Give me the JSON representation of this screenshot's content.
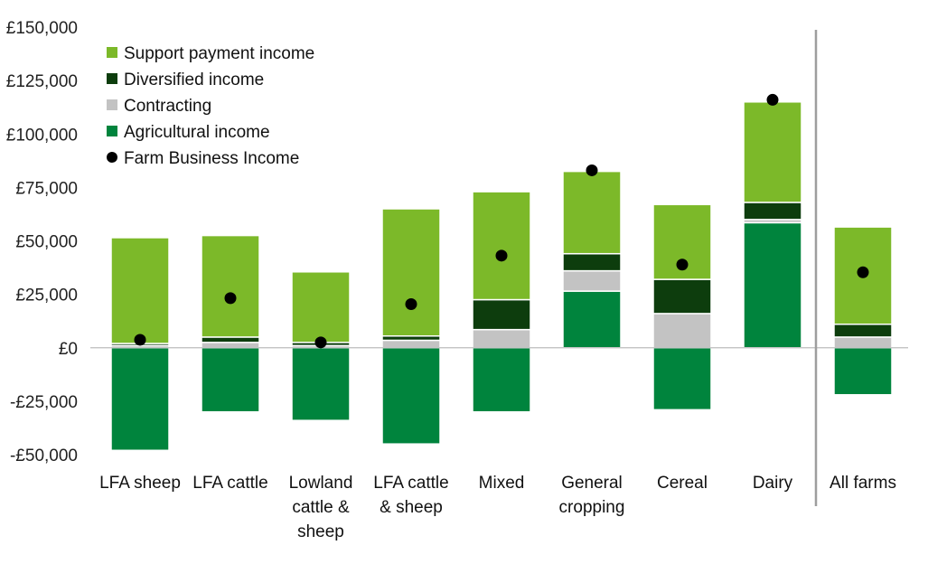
{
  "chart_data": {
    "type": "bar",
    "stacked": true,
    "title": "",
    "xlabel": "",
    "ylabel": "",
    "ylim": [
      -50000,
      150000
    ],
    "y_ticks": [
      150000,
      125000,
      100000,
      75000,
      50000,
      25000,
      0,
      -25000,
      -50000
    ],
    "y_tick_labels": [
      "£150,000",
      "£125,000",
      "£100,000",
      "£75,000",
      "£50,000",
      "£25,000",
      "£0",
      "-£25,000",
      "-£50,000"
    ],
    "categories": [
      "LFA sheep",
      "LFA cattle",
      "Lowland cattle & sheep",
      "LFA cattle & sheep",
      "Mixed",
      "General cropping",
      "Cereal",
      "Dairy",
      "All farms"
    ],
    "category_label_lines": [
      [
        "LFA sheep"
      ],
      [
        "LFA cattle"
      ],
      [
        "Lowland",
        "cattle &",
        "sheep"
      ],
      [
        "LFA cattle",
        "& sheep"
      ],
      [
        "Mixed"
      ],
      [
        "General",
        "cropping"
      ],
      [
        "Cereal"
      ],
      [
        "Dairy"
      ],
      [
        "All farms"
      ]
    ],
    "separator_before_index": 8,
    "grid": false,
    "legend_position": "top-left",
    "series": [
      {
        "name": "Agricultural income",
        "color": "#00843d",
        "values": [
          -48000,
          -30000,
          -34000,
          -45000,
          -30000,
          26500,
          -29000,
          58500,
          -22000
        ]
      },
      {
        "name": "Contracting",
        "color": "#c3c3c3",
        "values": [
          1000,
          2500,
          1000,
          3500,
          8500,
          9500,
          16000,
          1500,
          5000
        ]
      },
      {
        "name": "Diversified income",
        "color": "#0d3d0d",
        "values": [
          1000,
          2500,
          1500,
          2000,
          14000,
          8000,
          16000,
          8000,
          6000
        ]
      },
      {
        "name": "Support payment income",
        "color": "#7cb929",
        "values": [
          49500,
          47500,
          33000,
          59500,
          50500,
          38500,
          35000,
          47000,
          45500
        ]
      }
    ],
    "markers": {
      "name": "Farm Business Income",
      "color": "#000000",
      "values": [
        3700,
        23200,
        2500,
        20400,
        43100,
        83000,
        38900,
        116000,
        35300
      ]
    },
    "legend_order": [
      "Support payment income",
      "Diversified income",
      "Contracting",
      "Agricultural income",
      "Farm Business Income"
    ]
  }
}
